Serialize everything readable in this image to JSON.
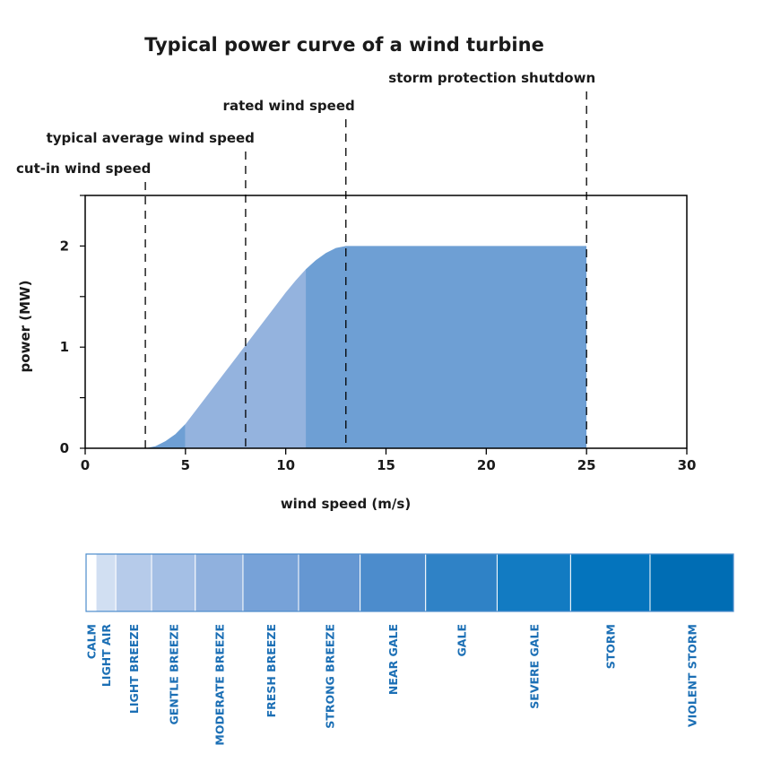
{
  "chart_data": {
    "type": "area",
    "title": "Typical power curve of a wind turbine",
    "xlabel": "wind speed (m/s)",
    "ylabel": "power (MW)",
    "xlim": [
      0,
      30
    ],
    "ylim": [
      0,
      2.5
    ],
    "x_ticks": [
      0,
      5,
      10,
      15,
      20,
      25,
      30
    ],
    "y_ticks": [
      0,
      1,
      2
    ],
    "grid": false,
    "x": [
      3,
      3.5,
      4,
      4.5,
      5,
      6,
      7,
      8,
      9,
      10,
      10.5,
      11,
      11.5,
      12,
      12.5,
      13,
      15,
      20,
      25
    ],
    "values": [
      0,
      0.02,
      0.07,
      0.14,
      0.24,
      0.5,
      0.76,
      1.02,
      1.28,
      1.54,
      1.66,
      1.77,
      1.86,
      1.93,
      1.98,
      2.0,
      2.0,
      2.0,
      2.0
    ],
    "regions": [
      {
        "from": 3,
        "to": 5,
        "color": "#6e9fd4"
      },
      {
        "from": 5,
        "to": 11,
        "color": "#94b3de"
      },
      {
        "from": 11,
        "to": 25,
        "color": "#6e9fd4"
      }
    ],
    "annotations": [
      {
        "label": "cut-in wind speed",
        "x": 3
      },
      {
        "label": "typical average wind speed",
        "x": 8
      },
      {
        "label": "rated wind speed",
        "x": 13
      },
      {
        "label": "storm protection shutdown",
        "x": 25
      }
    ]
  },
  "beaufort_scale": [
    {
      "label": "CALM",
      "from": 0,
      "to": 0.5,
      "color": "#ffffff"
    },
    {
      "label": "LIGHT AIR",
      "from": 0.5,
      "to": 1.5,
      "color": "#d1dff2"
    },
    {
      "label": "LIGHT BREEZE",
      "from": 1.5,
      "to": 3.3,
      "color": "#b6cbea"
    },
    {
      "label": "GENTLE BREEZE",
      "from": 3.3,
      "to": 5.5,
      "color": "#a4bfe5"
    },
    {
      "label": "MODERATE BREEZE",
      "from": 5.5,
      "to": 7.9,
      "color": "#90b1de"
    },
    {
      "label": "FRESH BREEZE",
      "from": 7.9,
      "to": 10.7,
      "color": "#77a2d8"
    },
    {
      "label": "STRONG BREEZE",
      "from": 10.7,
      "to": 13.8,
      "color": "#6597d2"
    },
    {
      "label": "NEAR GALE",
      "from": 13.8,
      "to": 17.1,
      "color": "#4c8ccc"
    },
    {
      "label": "GALE",
      "from": 17.1,
      "to": 20.7,
      "color": "#2f82c6"
    },
    {
      "label": "SEVERE GALE",
      "from": 20.7,
      "to": 24.4,
      "color": "#127bc2"
    },
    {
      "label": "STORM",
      "from": 24.4,
      "to": 28.4,
      "color": "#0474bd"
    },
    {
      "label": "VIOLENT STORM",
      "from": 28.4,
      "to": 32.6,
      "color": "#006db4"
    }
  ]
}
